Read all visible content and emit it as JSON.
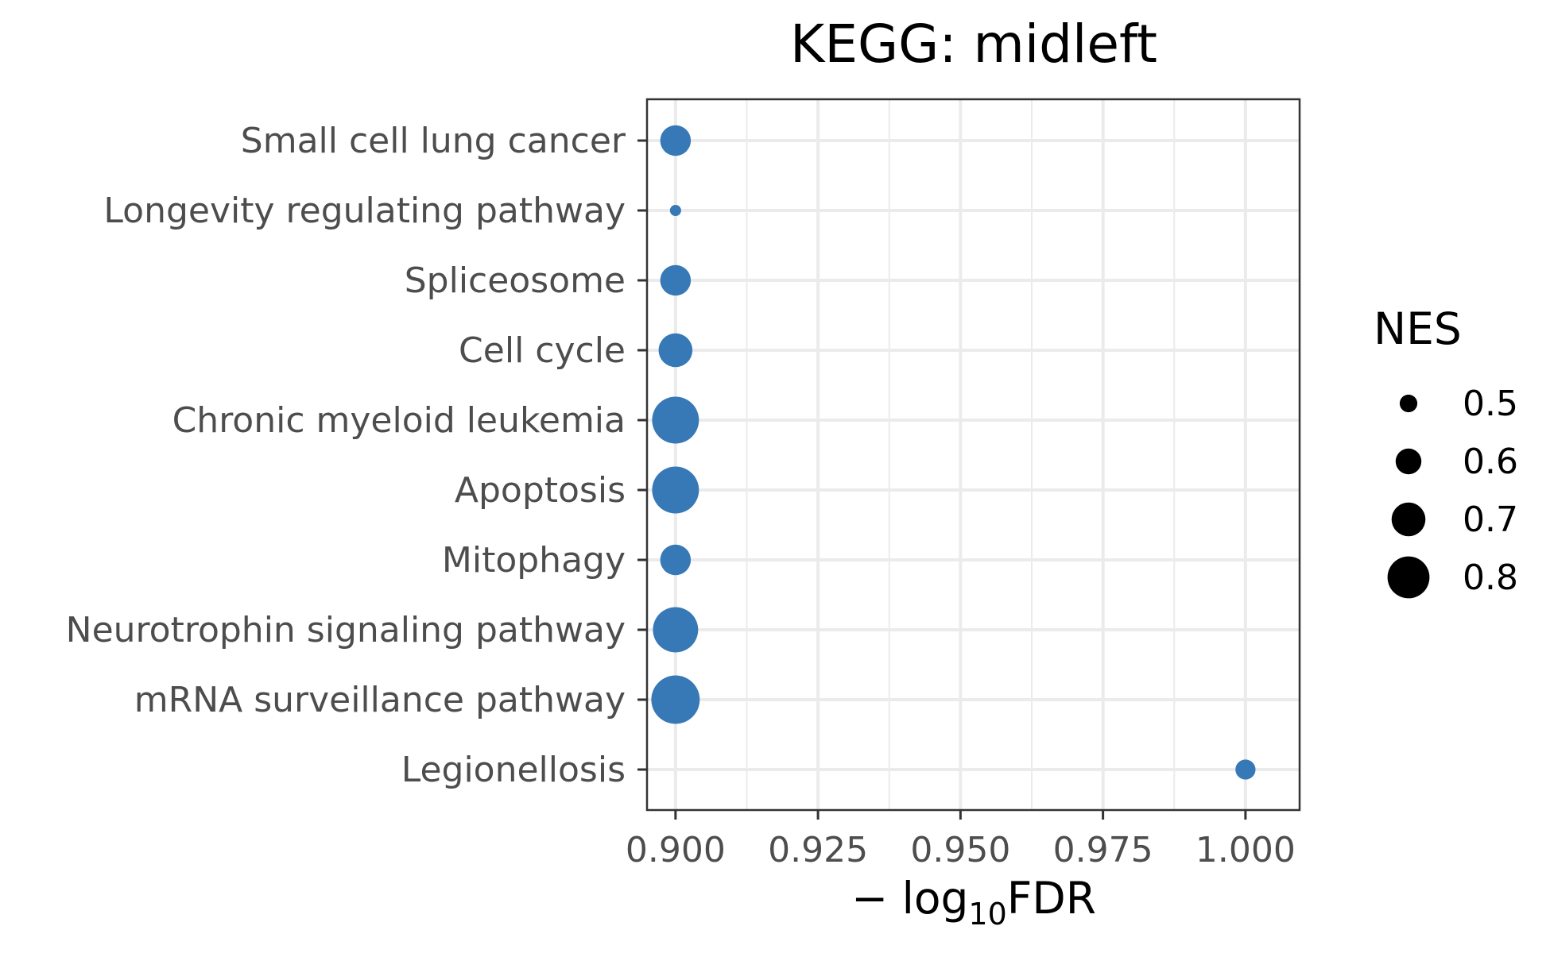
{
  "chart_data": {
    "type": "scatter",
    "title": "KEGG: midleft",
    "xlabel_main": "− log",
    "xlabel_sub": "10",
    "xlabel_tail": "FDR",
    "xlim": [
      0.895,
      1.0095
    ],
    "x_ticks": [
      0.9,
      0.925,
      0.95,
      0.975,
      1.0
    ],
    "x_tick_labels": [
      "0.900",
      "0.925",
      "0.950",
      "0.975",
      "1.000"
    ],
    "x_minor": [
      0.9125,
      0.9375,
      0.9625,
      0.9875
    ],
    "categories": [
      "Small cell lung cancer",
      "Longevity regulating pathway",
      "Spliceosome",
      "Cell cycle",
      "Chronic myeloid leukemia",
      "Apoptosis",
      "Mitophagy",
      "Neurotrophin signaling pathway",
      "mRNA surveillance pathway",
      "Legionellosis"
    ],
    "points": [
      {
        "pathway": "Small cell lung cancer",
        "x": 0.9,
        "nes": 0.66
      },
      {
        "pathway": "Longevity regulating pathway",
        "x": 0.9,
        "nes": 0.42
      },
      {
        "pathway": "Spliceosome",
        "x": 0.9,
        "nes": 0.66
      },
      {
        "pathway": "Cell cycle",
        "x": 0.9,
        "nes": 0.7
      },
      {
        "pathway": "Chronic myeloid leukemia",
        "x": 0.9,
        "nes": 0.86
      },
      {
        "pathway": "Apoptosis",
        "x": 0.9,
        "nes": 0.86
      },
      {
        "pathway": "Mitophagy",
        "x": 0.9,
        "nes": 0.66
      },
      {
        "pathway": "Neurotrophin signaling pathway",
        "x": 0.9,
        "nes": 0.84
      },
      {
        "pathway": "mRNA surveillance pathway",
        "x": 0.9,
        "nes": 0.88
      },
      {
        "pathway": "Legionellosis",
        "x": 1.0,
        "nes": 0.53
      }
    ],
    "point_color": "#3778b6",
    "grid": true,
    "legend": {
      "title": "NES",
      "position": "right",
      "values": [
        0.5,
        0.6,
        0.7,
        0.8
      ],
      "labels": [
        "0.5",
        "0.6",
        "0.7",
        "0.8"
      ],
      "color": "#000000"
    }
  }
}
